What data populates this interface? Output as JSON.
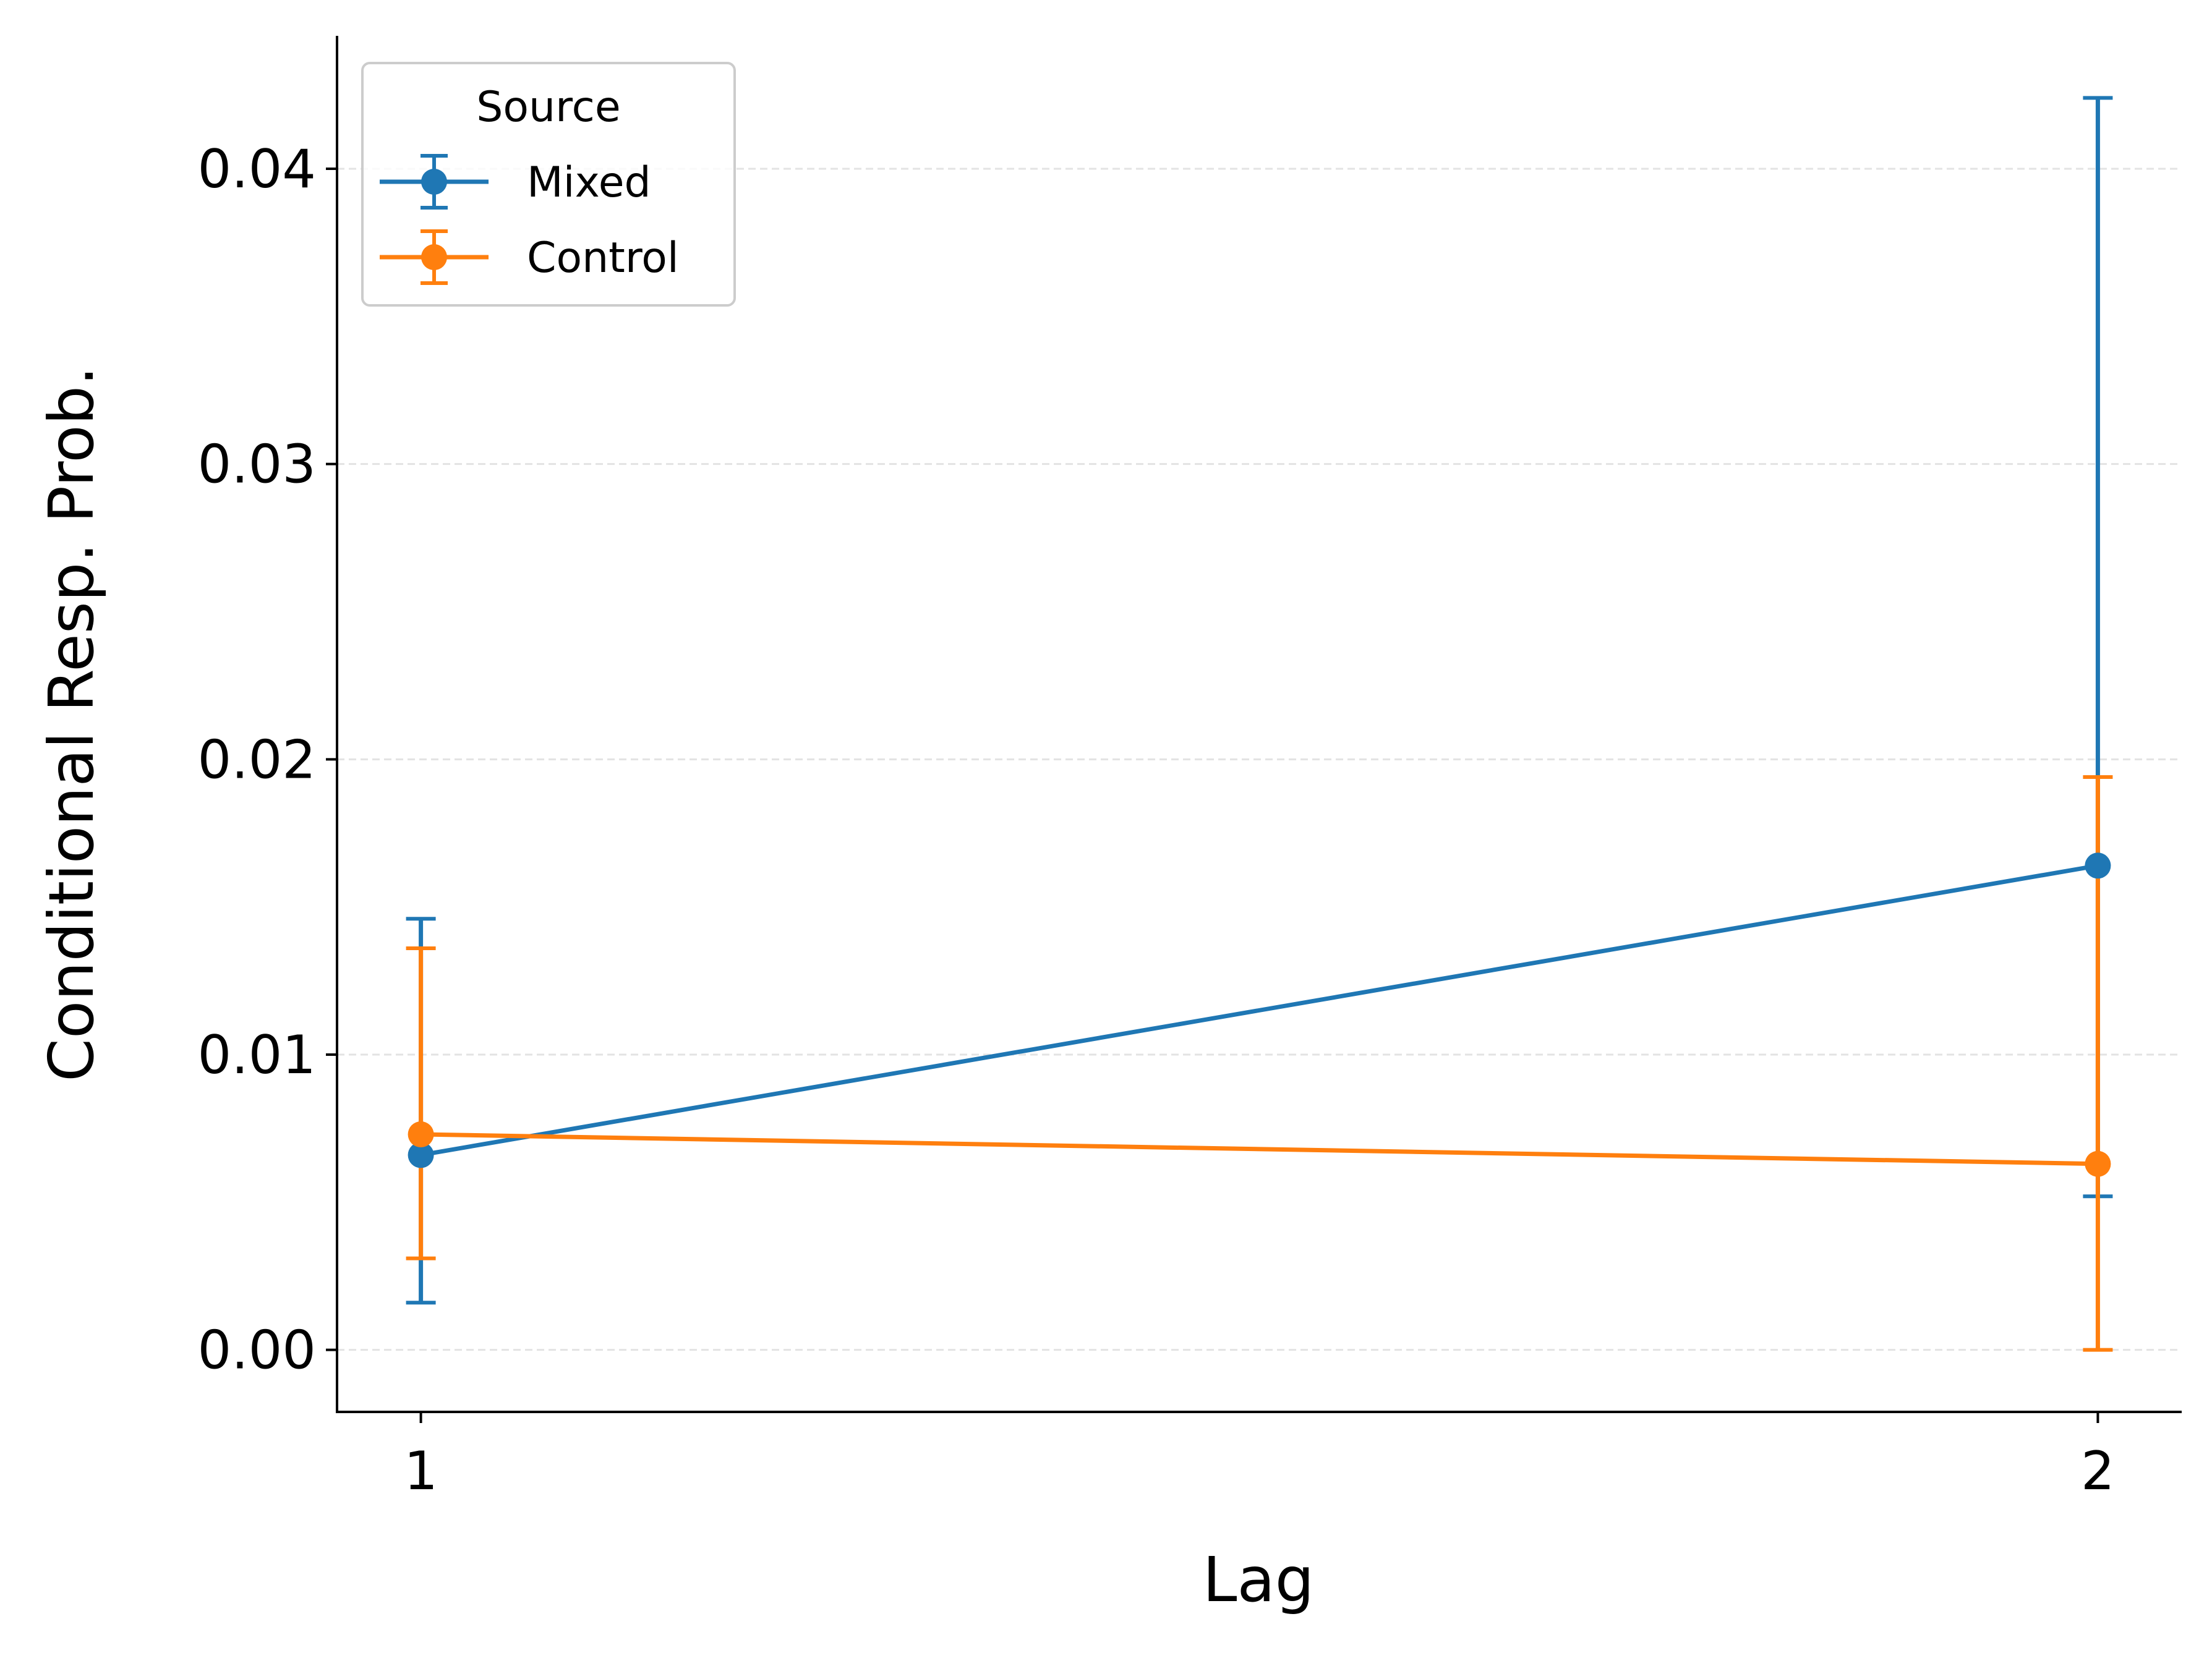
{
  "chart_data": {
    "type": "line",
    "title": "",
    "xlabel": "Lag",
    "ylabel": "Conditional Resp. Prob.",
    "x": [
      1,
      2
    ],
    "x_ticks": [
      "1",
      "2"
    ],
    "y_ticks": [
      "0.00",
      "0.01",
      "0.02",
      "0.03",
      "0.04"
    ],
    "xlim": [
      0.95,
      2.05
    ],
    "ylim": [
      -0.0021,
      0.0445
    ],
    "grid": "horizontal dashed",
    "error_bars": true,
    "legend": {
      "title": "Source",
      "placement": "top-left"
    },
    "series": [
      {
        "name": "Mixed",
        "color": "#1f77b4",
        "values": [
          0.0066,
          0.0164
        ],
        "lower": [
          0.0016,
          0.0052
        ],
        "upper": [
          0.0146,
          0.0424
        ]
      },
      {
        "name": "Control",
        "color": "#ff7f0e",
        "values": [
          0.0073,
          0.0063
        ],
        "lower": [
          0.0031,
          0.0
        ],
        "upper": [
          0.0136,
          0.0194
        ]
      }
    ]
  }
}
